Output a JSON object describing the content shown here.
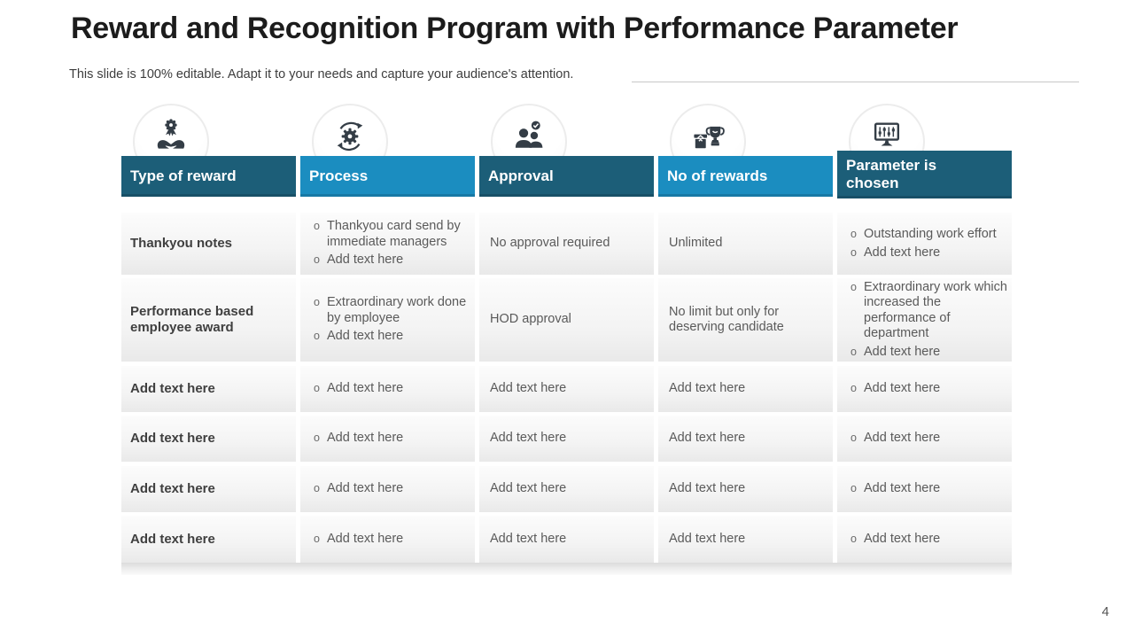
{
  "slide": {
    "title": "Reward and Recognition Program with Performance Parameter",
    "subtitle": "This slide is 100% editable. Adapt it to your needs and capture your audience's attention.",
    "page_number": "4"
  },
  "colors": {
    "header_dark": "#1c5e78",
    "header_light": "#1b8dc0",
    "icon_glyph": "#343d46",
    "body_text": "#5a5a5a",
    "title_text": "#1c1c1c"
  },
  "table": {
    "bullet_char": "o",
    "columns": [
      {
        "label": "Type of reward",
        "icon": "reward-hands-icon",
        "tone": "dark"
      },
      {
        "label": "Process",
        "icon": "process-cycle-icon",
        "tone": "light"
      },
      {
        "label": "Approval",
        "icon": "approval-team-icon",
        "tone": "dark"
      },
      {
        "label": "No of rewards",
        "icon": "gift-trophy-icon",
        "tone": "light"
      },
      {
        "label": "Parameter is chosen",
        "icon": "monitor-parameters-icon",
        "tone": "dark"
      }
    ],
    "rows": [
      {
        "type": "Thankyou notes",
        "process": [
          "Thankyou card send by immediate managers",
          "Add text here"
        ],
        "approval": "No approval required",
        "no_of_rewards": "Unlimited",
        "parameters": [
          "Outstanding work effort",
          "Add text here"
        ]
      },
      {
        "type": "Performance based employee award",
        "process": [
          "Extraordinary work done by employee",
          "Add text here"
        ],
        "approval": "HOD approval",
        "no_of_rewards": "No limit but only for deserving candidate",
        "parameters": [
          "Extraordinary work which increased the performance of department",
          "Add text here"
        ]
      },
      {
        "type": "Add text here",
        "process": [
          "Add text here"
        ],
        "approval": "Add text here",
        "no_of_rewards": "Add text here",
        "parameters": [
          "Add text here"
        ]
      },
      {
        "type": "Add text here",
        "process": [
          "Add text here"
        ],
        "approval": "Add text here",
        "no_of_rewards": "Add text here",
        "parameters": [
          "Add text here"
        ]
      },
      {
        "type": "Add text here",
        "process": [
          "Add text here"
        ],
        "approval": "Add text here",
        "no_of_rewards": "Add text here",
        "parameters": [
          "Add text here"
        ]
      },
      {
        "type": "Add text here",
        "process": [
          "Add text here"
        ],
        "approval": "Add text here",
        "no_of_rewards": "Add text here",
        "parameters": [
          "Add text here"
        ]
      }
    ]
  }
}
